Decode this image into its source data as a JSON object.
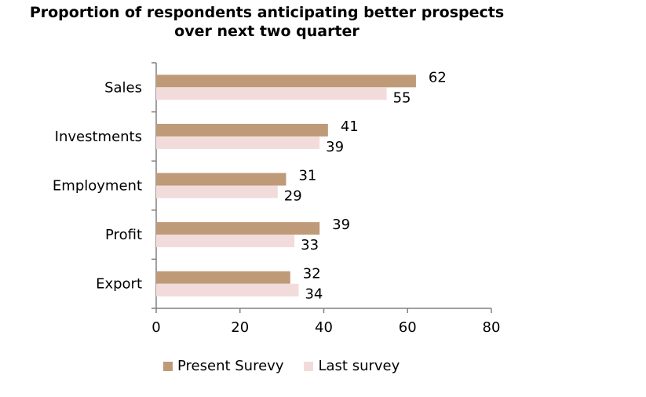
{
  "chart_data": {
    "type": "bar",
    "orientation": "horizontal",
    "title_line1": "Proportion of respondents anticipating better prospects",
    "title_line2": "over next two quarter",
    "categories": [
      "Sales",
      "Investments",
      "Employment",
      "Profit",
      "Export"
    ],
    "series": [
      {
        "name": "Present Surevy",
        "values": [
          62,
          41,
          31,
          39,
          32
        ],
        "color": "#bf9a79"
      },
      {
        "name": "Last survey",
        "values": [
          55,
          39,
          29,
          33,
          34
        ],
        "color": "#f2dcdb"
      }
    ],
    "xlim": [
      0,
      80
    ],
    "xticks": [
      "0",
      "20",
      "40",
      "60",
      "80"
    ],
    "grid": false,
    "legend_position": "bottom"
  }
}
